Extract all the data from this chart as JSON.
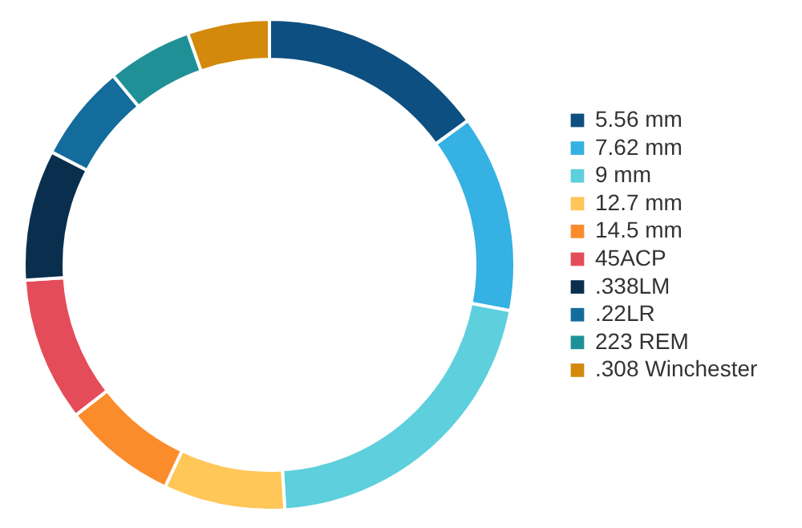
{
  "chart_data": {
    "type": "donut",
    "categories": [
      "5.56 mm",
      "7.62 mm",
      "9 mm",
      "12.7 mm",
      "14.5 mm",
      "45ACP",
      ".338LM",
      ".22LR",
      "223 REM",
      ".308 Winchester"
    ],
    "values": [
      15,
      13,
      21,
      8,
      7.5,
      9.5,
      8.6,
      6.4,
      5.6,
      5.4
    ],
    "colors": [
      "#0d4f80",
      "#35b1e3",
      "#5ecfdc",
      "#ffc658",
      "#fb8c2c",
      "#e44c5a",
      "#0a2f4e",
      "#136c9c",
      "#1f9196",
      "#d3890b"
    ],
    "legend": "right"
  }
}
